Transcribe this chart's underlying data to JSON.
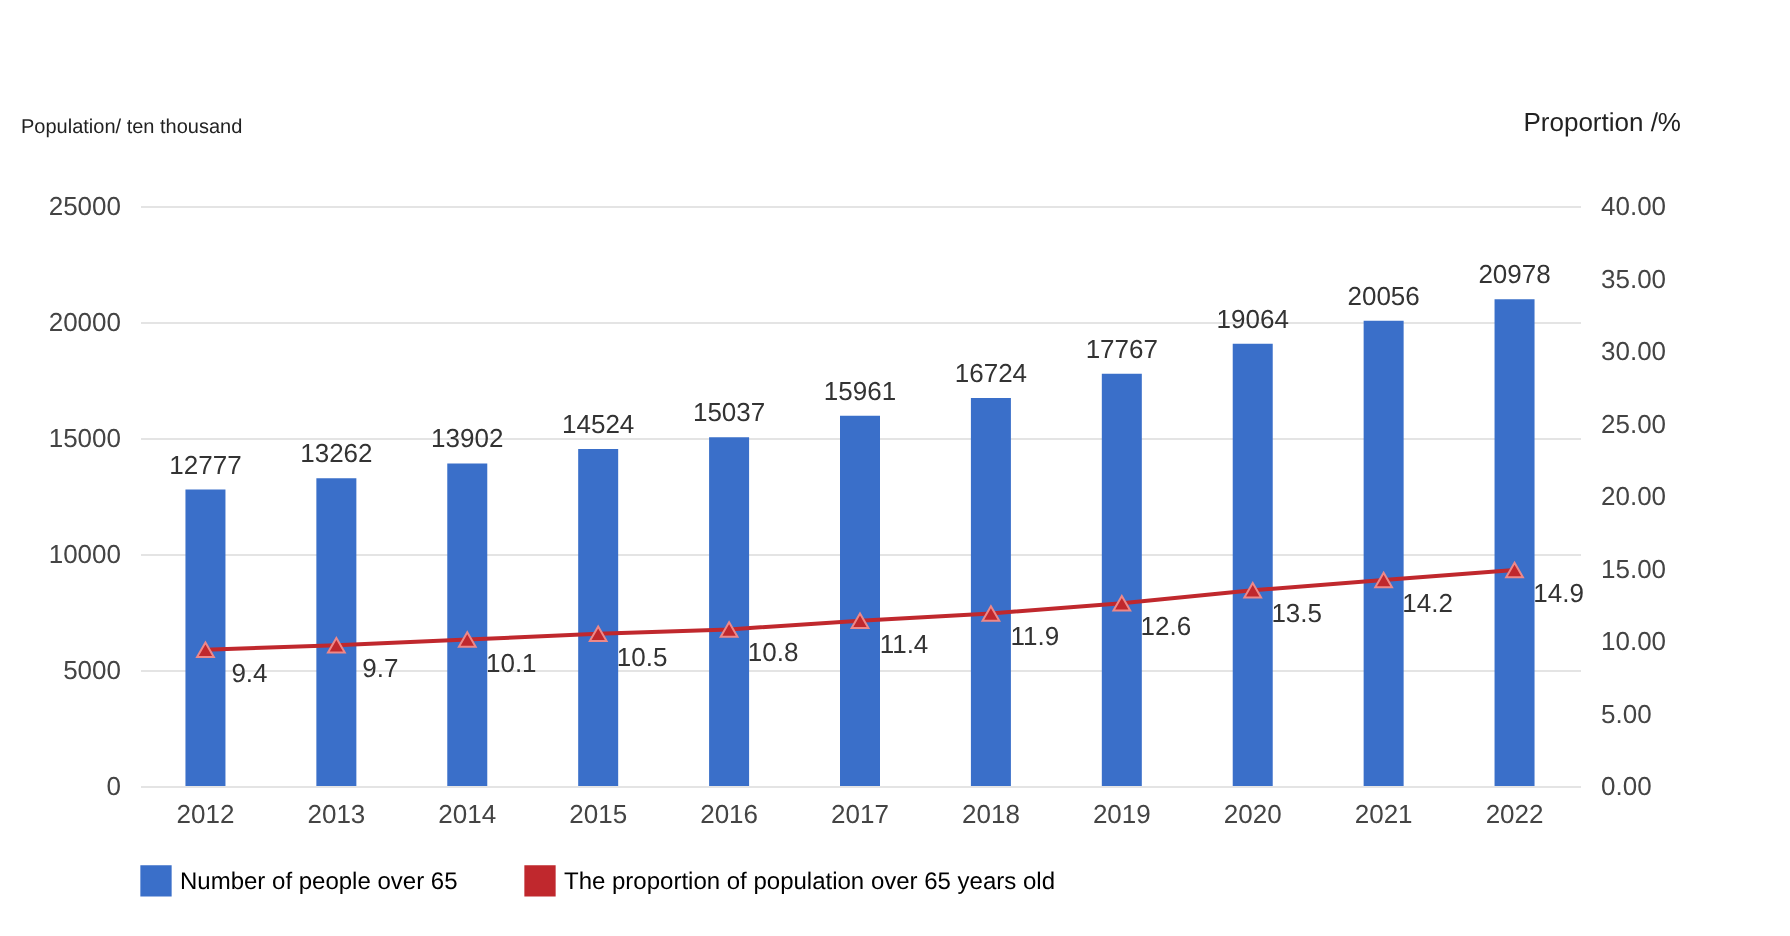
{
  "chart_data": {
    "type": "bar",
    "categories": [
      "2012",
      "2013",
      "2014",
      "2015",
      "2016",
      "2017",
      "2018",
      "2019",
      "2020",
      "2021",
      "2022"
    ],
    "ylabel": "Population/ ten thousand",
    "y2label": "Proportion /%",
    "series": [
      {
        "name": "Number of people over 65",
        "color": "#3a6fc9",
        "values": [
          12777,
          13262,
          13902,
          14524,
          15037,
          15961,
          16724,
          17767,
          19064,
          20056,
          20978
        ]
      },
      {
        "name": "The proportion of population over 65 years old",
        "type": "line",
        "axis": "y2",
        "color": "#c0282d",
        "marker": "triangle",
        "values": [
          9.4,
          9.7,
          10.1,
          10.5,
          10.8,
          11.4,
          11.9,
          12.6,
          13.5,
          14.2,
          14.9
        ]
      }
    ],
    "ylim": [
      0,
      25000
    ],
    "yticks": [
      0,
      5000,
      10000,
      15000,
      20000,
      25000
    ],
    "y2lim": [
      0,
      40
    ],
    "y2ticks": [
      {
        "value": 0,
        "label": "0.00"
      },
      {
        "value": 5,
        "label": "5.00"
      },
      {
        "value": 10,
        "label": "10.00"
      },
      {
        "value": 15,
        "label": "15.00"
      },
      {
        "value": 20,
        "label": "20.00"
      },
      {
        "value": 25,
        "label": "25.00"
      },
      {
        "value": 30,
        "label": "30.00"
      },
      {
        "value": 35,
        "label": "35.00"
      },
      {
        "value": 40,
        "label": "40.00"
      }
    ],
    "grid": "y",
    "legend": "bottom",
    "data_labels": true
  }
}
